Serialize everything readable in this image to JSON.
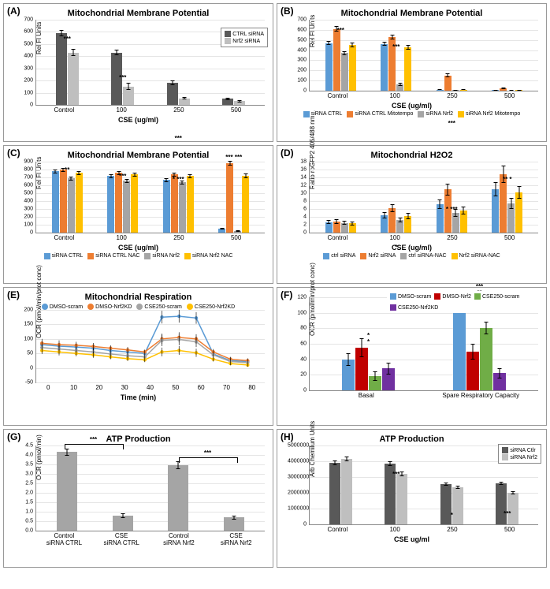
{
  "colors": {
    "dark_gray": "#595959",
    "light_gray": "#bfbfbf",
    "blue": "#5b9bd5",
    "orange": "#ed7d31",
    "med_gray": "#a5a5a5",
    "yellow": "#ffc000",
    "green": "#70ad47",
    "red": "#c00000",
    "purple": "#7030a0",
    "grid": "#e5e5e5",
    "axis": "#888888",
    "bg": "#ffffff"
  },
  "A": {
    "label": "(A)",
    "title": "Mitochondrial Membrane Potential",
    "ylabel": "Rel Fl Units",
    "xlabel": "CSE (ug/ml)",
    "ylim": [
      0,
      700
    ],
    "ystep": 100,
    "categories": [
      "Control",
      "100",
      "250",
      "500"
    ],
    "series": [
      {
        "name": "CTRL siRNA",
        "color": "#595959",
        "values": [
          590,
          430,
          180,
          50
        ],
        "err": [
          25,
          22,
          18,
          10
        ]
      },
      {
        "name": "Nrf2 siRNA",
        "color": "#bfbfbf",
        "values": [
          430,
          150,
          55,
          30
        ],
        "err": [
          30,
          30,
          12,
          8
        ]
      }
    ],
    "sig": [
      "***",
      "***",
      "***",
      ""
    ]
  },
  "B": {
    "label": "(B)",
    "title": "Mitochondrial Membrane Potential",
    "ylabel": "Rel Fl Units",
    "xlabel": "CSE (ug/ml)",
    "ylim": [
      0,
      700
    ],
    "ystep": 100,
    "categories": [
      "Control",
      "100",
      "250",
      "500"
    ],
    "series": [
      {
        "name": "siRNA CTRL",
        "color": "#5b9bd5",
        "values": [
          470,
          460,
          10,
          5
        ],
        "err": [
          20,
          20,
          5,
          3
        ]
      },
      {
        "name": "siRNA CTRL Mitotempo",
        "color": "#ed7d31",
        "values": [
          610,
          530,
          150,
          25
        ],
        "err": [
          25,
          25,
          18,
          8
        ]
      },
      {
        "name": "siRNA Nrf2",
        "color": "#a5a5a5",
        "values": [
          370,
          60,
          5,
          3
        ],
        "err": [
          20,
          15,
          3,
          2
        ]
      },
      {
        "name": "siRNA Nrf2 Mitotempo",
        "color": "#ffc000",
        "values": [
          450,
          430,
          10,
          5
        ],
        "err": [
          22,
          22,
          5,
          3
        ]
      }
    ],
    "sig": [
      "***",
      "***",
      "***",
      ""
    ]
  },
  "C": {
    "label": "(C)",
    "title": "Mitochondrial Membrane Potential",
    "ylabel": "Rel Fl Units",
    "xlabel": "CSE (ug/ml)",
    "ylim": [
      0,
      900
    ],
    "ystep": 100,
    "categories": [
      "Control",
      "100",
      "250",
      "500"
    ],
    "series": [
      {
        "name": "siRNA CTRL",
        "color": "#5b9bd5",
        "values": [
          780,
          720,
          670,
          50
        ],
        "err": [
          25,
          25,
          25,
          10
        ]
      },
      {
        "name": "siRNA CTRL NAC",
        "color": "#ed7d31",
        "values": [
          800,
          760,
          740,
          880
        ],
        "err": [
          25,
          25,
          25,
          30
        ]
      },
      {
        "name": "siRNA Nrf2",
        "color": "#a5a5a5",
        "values": [
          690,
          660,
          640,
          20
        ],
        "err": [
          25,
          25,
          25,
          8
        ]
      },
      {
        "name": "siRNA Nrf2 NAC",
        "color": "#ffc000",
        "values": [
          760,
          740,
          720,
          720
        ],
        "err": [
          25,
          25,
          25,
          30
        ]
      }
    ],
    "sig": [
      "**",
      "***",
      "* / ***",
      "*** / ***"
    ],
    "sig_labels": [
      "**",
      "***",
      "*  ***",
      "***  ***"
    ]
  },
  "D": {
    "label": "(D)",
    "title": "Mitochondrial H2O2",
    "ylabel": "Ratio roGFP2 405/488 nm",
    "xlabel": "CSE (ug/ml)",
    "ylim": [
      0,
      18
    ],
    "ystep": 2,
    "categories": [
      "Control",
      "100",
      "250",
      "500"
    ],
    "series": [
      {
        "name": "ctrl siRNA",
        "color": "#5b9bd5",
        "values": [
          2.7,
          4.5,
          7.2,
          11.0
        ],
        "err": [
          0.5,
          0.8,
          1.2,
          1.8
        ]
      },
      {
        "name": "Nrf2 siRNA",
        "color": "#ed7d31",
        "values": [
          2.9,
          6.2,
          11.0,
          14.8
        ],
        "err": [
          0.6,
          1.0,
          1.5,
          2.2
        ]
      },
      {
        "name": "ctrl siRNA-NAC",
        "color": "#a5a5a5",
        "values": [
          2.5,
          3.2,
          5.0,
          7.5
        ],
        "err": [
          0.5,
          0.6,
          1.0,
          1.4
        ]
      },
      {
        "name": "Nrf2 siRNA-NAC",
        "color": "#ffc000",
        "values": [
          2.4,
          4.2,
          5.6,
          10.2
        ],
        "err": [
          0.5,
          0.8,
          1.0,
          1.6
        ]
      }
    ],
    "sig": [
      "",
      "*",
      "*  ***",
      "**  *"
    ]
  },
  "E": {
    "label": "(E)",
    "title": "Mitochondrial Respiration",
    "ylabel": "OCR (pmol/min/prot conc)",
    "xlabel": "Time (min)",
    "xlim": [
      0,
      80
    ],
    "xstep": 10,
    "ylim": [
      -50,
      200
    ],
    "ystep": 50,
    "times": [
      2,
      8,
      14,
      20,
      26,
      32,
      38,
      44,
      50,
      56,
      62,
      68,
      74
    ],
    "series": [
      {
        "name": "DMSO-scram",
        "color": "#5b9bd5",
        "values": [
          80,
          75,
          72,
          68,
          60,
          55,
          50,
          175,
          178,
          172,
          48,
          25,
          22
        ],
        "err": [
          12,
          12,
          12,
          10,
          10,
          10,
          8,
          22,
          22,
          20,
          10,
          8,
          8
        ]
      },
      {
        "name": "DMSO-Nrf2KD",
        "color": "#ed7d31",
        "values": [
          85,
          80,
          78,
          74,
          68,
          62,
          55,
          100,
          105,
          100,
          55,
          30,
          25
        ],
        "err": [
          15,
          15,
          12,
          12,
          10,
          10,
          8,
          18,
          18,
          16,
          10,
          8,
          8
        ]
      },
      {
        "name": "CSE250-scram",
        "color": "#a5a5a5",
        "values": [
          70,
          65,
          60,
          55,
          48,
          42,
          38,
          95,
          98,
          90,
          45,
          22,
          18
        ],
        "err": [
          14,
          14,
          12,
          12,
          10,
          10,
          8,
          20,
          20,
          18,
          10,
          8,
          8
        ]
      },
      {
        "name": "CSE250-Nrf2KD",
        "color": "#ffc000",
        "values": [
          60,
          55,
          50,
          45,
          38,
          32,
          28,
          55,
          60,
          52,
          30,
          15,
          10
        ],
        "err": [
          12,
          12,
          10,
          10,
          8,
          8,
          8,
          15,
          15,
          14,
          8,
          6,
          6
        ]
      }
    ]
  },
  "F": {
    "label": "(F)",
    "title": "",
    "ylabel": "OCR (pmol/min/prot conc)",
    "ylim": [
      0,
      120
    ],
    "ystep": 20,
    "categories": [
      "Basal",
      "Spare Respiratory Capacity"
    ],
    "series": [
      {
        "name": "DMSO-scram",
        "color": "#5b9bd5",
        "values": [
          40,
          110
        ],
        "err": [
          8,
          7
        ]
      },
      {
        "name": "DMSO-Nrf2",
        "color": "#c00000",
        "values": [
          55,
          50
        ],
        "err": [
          12,
          10
        ]
      },
      {
        "name": "CSE250-scram",
        "color": "#70ad47",
        "values": [
          18,
          80
        ],
        "err": [
          6,
          8
        ]
      },
      {
        "name": "CSE250-Nrf2KD",
        "color": "#7030a0",
        "values": [
          28,
          22
        ],
        "err": [
          8,
          7
        ]
      }
    ],
    "sig": [
      [
        "*",
        "*"
      ],
      [
        "**",
        "**",
        "***"
      ]
    ]
  },
  "G": {
    "label": "(G)",
    "title": "ATP Production",
    "ylabel": "OCR (pmol/min)",
    "ylim": [
      0,
      4.5
    ],
    "ystep": 0.5,
    "categories": [
      "Control\nsiRNA CTRL",
      "CSE\nsiRNA CTRL",
      "Control\nsiRNA Nrf2",
      "CSE\nsiRNA Nrf2"
    ],
    "series": [
      {
        "name": "",
        "color": "#a5a5a5",
        "values": [
          4.15,
          0.8,
          3.45,
          0.7
        ],
        "err": [
          0.18,
          0.12,
          0.22,
          0.1
        ]
      }
    ],
    "sig_pairs": [
      [
        "***",
        0,
        1
      ],
      [
        "***",
        2,
        3
      ]
    ]
  },
  "H": {
    "label": "(H)",
    "title": "ATP Production",
    "ylabel": "Arb Chemilum Units",
    "xlabel": "CSE ug/ml",
    "ylim": [
      0,
      5000000
    ],
    "ystep": 1000000,
    "categories": [
      "Control",
      "100",
      "250",
      "500"
    ],
    "series": [
      {
        "name": "siRNA Ctlr",
        "color": "#595959",
        "values": [
          3900000,
          3850000,
          2550000,
          2600000
        ],
        "err": [
          150000,
          140000,
          100000,
          110000
        ]
      },
      {
        "name": "siRNA Nrf2",
        "color": "#bfbfbf",
        "values": [
          4150000,
          3200000,
          2350000,
          2000000
        ],
        "err": [
          160000,
          140000,
          100000,
          100000
        ]
      }
    ],
    "sig": [
      "",
      "***",
      "*",
      "***"
    ]
  }
}
